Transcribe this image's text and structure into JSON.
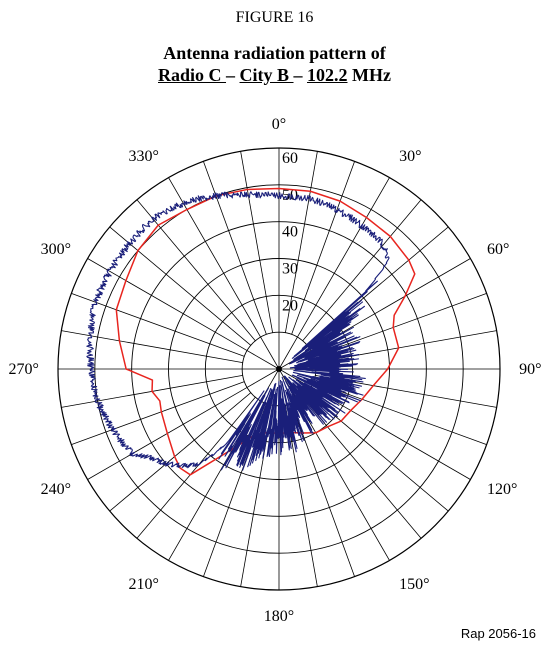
{
  "figure_label": "FIGURE 16",
  "title": {
    "line1": "Antenna radiation pattern of",
    "radio": "Radio C ",
    "sep1": "– ",
    "city": "City B ",
    "sep2": "– ",
    "freq": "102.2",
    "unit": " MHz"
  },
  "reference": "Rap 2056-16",
  "colors": {
    "grid": "#000000",
    "reference_curve": "#e8251f",
    "measured_curve": "#1a1f7a"
  },
  "chart_data": {
    "type": "polar-line",
    "angular_axis": {
      "direction": "clockwise",
      "zero_at": "top",
      "spoke_step_deg": 10,
      "tick_labels": [
        {
          "angle": 0,
          "label": "0°"
        },
        {
          "angle": 30,
          "label": "30°"
        },
        {
          "angle": 60,
          "label": "60°"
        },
        {
          "angle": 90,
          "label": "90°"
        },
        {
          "angle": 120,
          "label": "120°"
        },
        {
          "angle": 150,
          "label": "150°"
        },
        {
          "angle": 180,
          "label": "180°"
        },
        {
          "angle": 210,
          "label": "210°"
        },
        {
          "angle": 240,
          "label": "240°"
        },
        {
          "angle": 270,
          "label": "270°"
        },
        {
          "angle": 300,
          "label": "300°"
        },
        {
          "angle": 330,
          "label": "330°"
        }
      ]
    },
    "radial_axis": {
      "range": [
        0,
        60
      ],
      "rings": [
        10,
        20,
        30,
        40,
        50,
        60
      ],
      "tick_labels": [
        "20",
        "30",
        "40",
        "50",
        "60"
      ]
    },
    "series": [
      {
        "color": "#e8251f",
        "style": "smooth",
        "points": [
          [
            0,
            49
          ],
          [
            10,
            49
          ],
          [
            20,
            48.5
          ],
          [
            30,
            47.5
          ],
          [
            40,
            47
          ],
          [
            50,
            46
          ],
          [
            55,
            45
          ],
          [
            60,
            39.5
          ],
          [
            65,
            34.5
          ],
          [
            70,
            33
          ],
          [
            80,
            33
          ],
          [
            90,
            29.5
          ],
          [
            100,
            26
          ],
          [
            110,
            24
          ],
          [
            120,
            22.5
          ],
          [
            130,
            22
          ],
          [
            140,
            20.5
          ],
          [
            150,
            20
          ],
          [
            160,
            18.5
          ],
          [
            170,
            17.5
          ],
          [
            180,
            17.5
          ],
          [
            190,
            17.5
          ],
          [
            200,
            19
          ],
          [
            210,
            25
          ],
          [
            220,
            37.5
          ],
          [
            225,
            38
          ],
          [
            230,
            37
          ],
          [
            240,
            35
          ],
          [
            250,
            34
          ],
          [
            255,
            33.5
          ],
          [
            260,
            35
          ],
          [
            265,
            34.5
          ],
          [
            270,
            41.5
          ],
          [
            280,
            44
          ],
          [
            290,
            47
          ],
          [
            300,
            48
          ],
          [
            310,
            50
          ],
          [
            320,
            51
          ],
          [
            330,
            50
          ],
          [
            340,
            50
          ],
          [
            350,
            49.5
          ],
          [
            360,
            49
          ]
        ]
      },
      {
        "color": "#1a1f7a",
        "style": "jagged",
        "points": [
          [
            0,
            47
          ],
          [
            10,
            47
          ],
          [
            20,
            46
          ],
          [
            30,
            45
          ],
          [
            40,
            44
          ],
          [
            45,
            42
          ],
          [
            50,
            26
          ],
          [
            55,
            23
          ],
          [
            60,
            20
          ],
          [
            70,
            18
          ],
          [
            80,
            17
          ],
          [
            90,
            18
          ],
          [
            100,
            20
          ],
          [
            110,
            19
          ],
          [
            120,
            17
          ],
          [
            130,
            15
          ],
          [
            140,
            14
          ],
          [
            150,
            14
          ],
          [
            160,
            15
          ],
          [
            170,
            18
          ],
          [
            180,
            20
          ],
          [
            190,
            22
          ],
          [
            200,
            24
          ],
          [
            205,
            24
          ],
          [
            210,
            27
          ],
          [
            215,
            24
          ],
          [
            220,
            34
          ],
          [
            225,
            37
          ],
          [
            230,
            40
          ],
          [
            235,
            42
          ],
          [
            240,
            46
          ],
          [
            250,
            48
          ],
          [
            260,
            50
          ],
          [
            270,
            51
          ],
          [
            280,
            52
          ],
          [
            290,
            53
          ],
          [
            300,
            53
          ],
          [
            310,
            53
          ],
          [
            320,
            53
          ],
          [
            330,
            52
          ],
          [
            340,
            50
          ],
          [
            350,
            48
          ],
          [
            360,
            47
          ]
        ]
      }
    ]
  }
}
